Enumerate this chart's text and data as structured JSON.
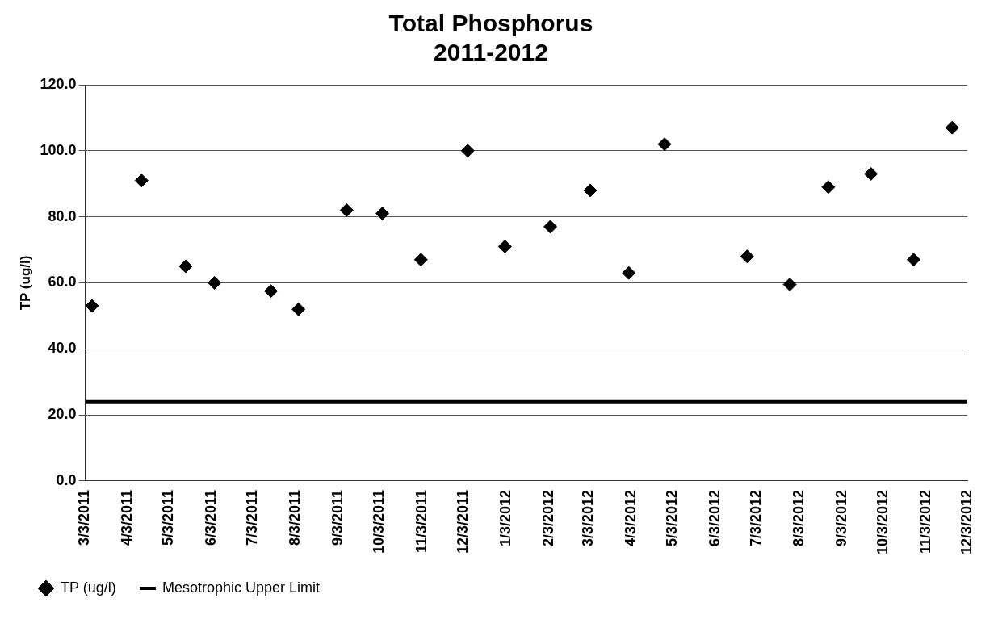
{
  "chart_data": {
    "type": "scatter",
    "title": "Total Phosphorus\n2011-2012",
    "ylabel": "TP (ug/l)",
    "series": [
      {
        "name": "TP (ug/l)",
        "type": "scatter",
        "color": "#000000",
        "marker": "diamond",
        "x": [
          "2011-03-08",
          "2011-04-13",
          "2011-05-15",
          "2011-06-05",
          "2011-07-16",
          "2011-08-05",
          "2011-09-09",
          "2011-10-05",
          "2011-11-02",
          "2011-12-06",
          "2012-01-02",
          "2012-02-04",
          "2012-03-04",
          "2012-04-01",
          "2012-04-27",
          "2012-06-26",
          "2012-07-27",
          "2012-08-24",
          "2012-09-24",
          "2012-10-25",
          "2012-11-22"
        ],
        "values": [
          53,
          91,
          65,
          60,
          57.5,
          52,
          82,
          81,
          67,
          100,
          71,
          77,
          88,
          63,
          102,
          68,
          59.5,
          89,
          93,
          67,
          107
        ]
      },
      {
        "name": "Mesotrophic Upper Limit",
        "type": "line",
        "color": "#000000",
        "marker": "none",
        "line_style": "solid",
        "x": [
          "2011-03-03",
          "2012-12-03"
        ],
        "values": [
          24,
          24
        ]
      }
    ],
    "xlim": [
      "2011-03-03",
      "2012-12-03"
    ],
    "xticks": [
      {
        "value": "2011-03-03",
        "label": "3/3/2011"
      },
      {
        "value": "2011-04-03",
        "label": "4/3/2011"
      },
      {
        "value": "2011-05-03",
        "label": "5/3/2011"
      },
      {
        "value": "2011-06-03",
        "label": "6/3/2011"
      },
      {
        "value": "2011-07-03",
        "label": "7/3/2011"
      },
      {
        "value": "2011-08-03",
        "label": "8/3/2011"
      },
      {
        "value": "2011-09-03",
        "label": "9/3/2011"
      },
      {
        "value": "2011-10-03",
        "label": "10/3/2011"
      },
      {
        "value": "2011-11-03",
        "label": "11/3/2011"
      },
      {
        "value": "2011-12-03",
        "label": "12/3/2011"
      },
      {
        "value": "2012-01-03",
        "label": "1/3/2012"
      },
      {
        "value": "2012-02-03",
        "label": "2/3/2012"
      },
      {
        "value": "2012-03-03",
        "label": "3/3/2012"
      },
      {
        "value": "2012-04-03",
        "label": "4/3/2012"
      },
      {
        "value": "2012-05-03",
        "label": "5/3/2012"
      },
      {
        "value": "2012-06-03",
        "label": "6/3/2012"
      },
      {
        "value": "2012-07-03",
        "label": "7/3/2012"
      },
      {
        "value": "2012-08-03",
        "label": "8/3/2012"
      },
      {
        "value": "2012-09-03",
        "label": "9/3/2012"
      },
      {
        "value": "2012-10-03",
        "label": "10/3/2012"
      },
      {
        "value": "2012-11-03",
        "label": "11/3/2012"
      },
      {
        "value": "2012-12-03",
        "label": "12/3/2012"
      }
    ],
    "ylim": [
      0,
      120
    ],
    "yticks": [
      {
        "value": 0,
        "label": "0.0"
      },
      {
        "value": 20,
        "label": "20.0"
      },
      {
        "value": 40,
        "label": "40.0"
      },
      {
        "value": 60,
        "label": "60.0"
      },
      {
        "value": 80,
        "label": "80.0"
      },
      {
        "value": 100,
        "label": "100.0"
      },
      {
        "value": 120,
        "label": "120.0"
      }
    ],
    "grid": "y",
    "legend": "bottom left"
  }
}
